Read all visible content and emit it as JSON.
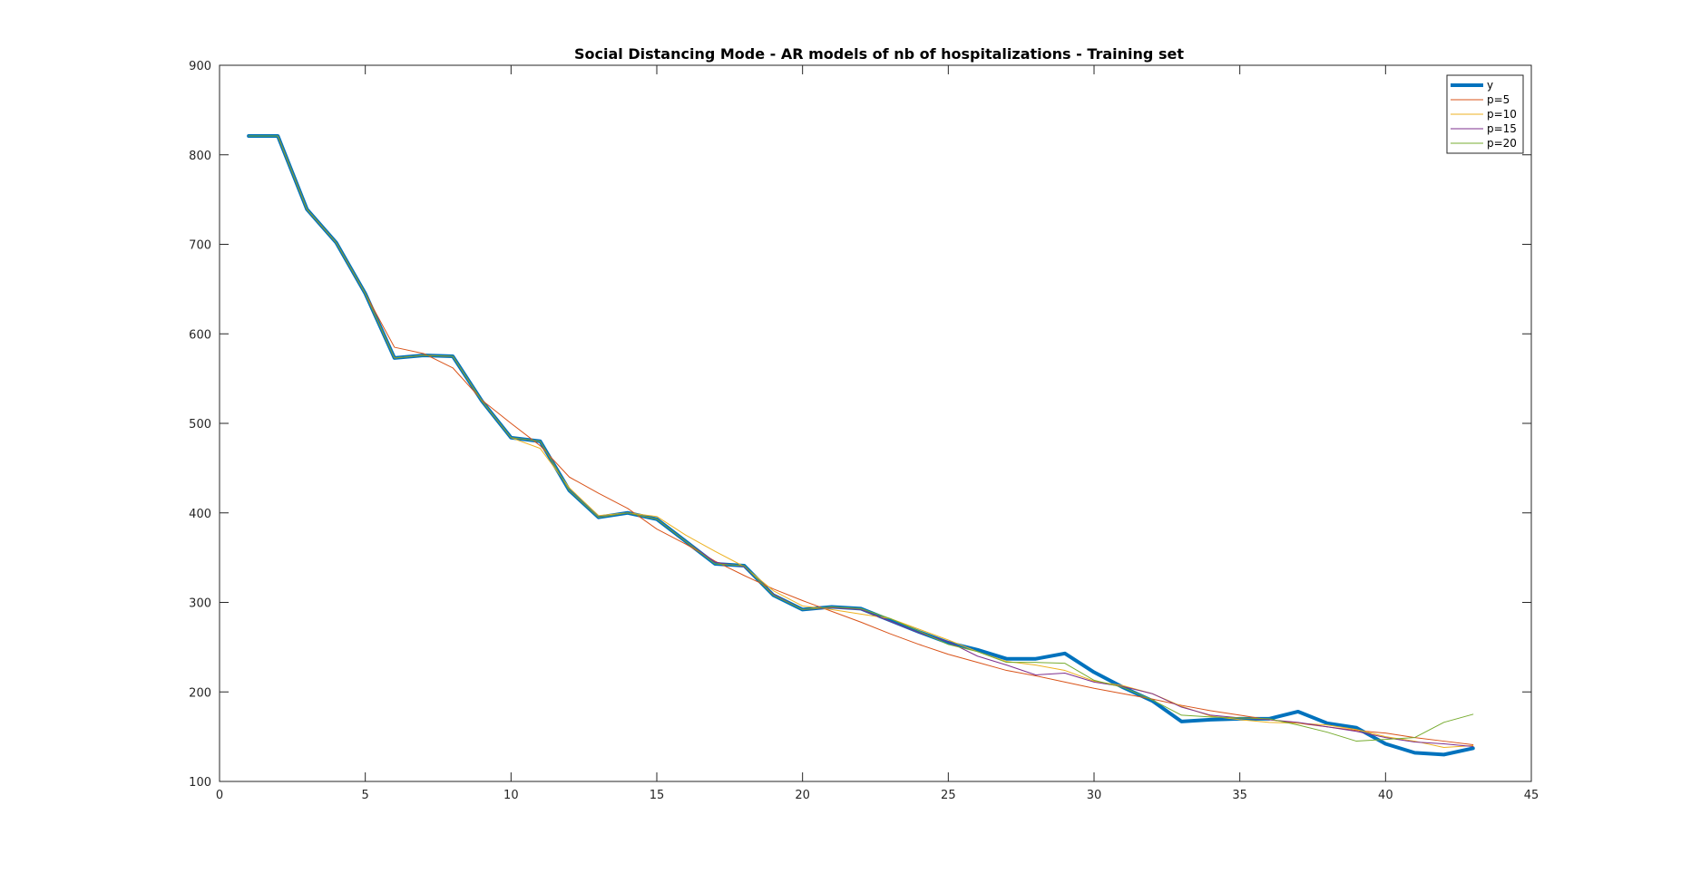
{
  "chart_data": {
    "type": "line",
    "title": "Social Distancing Mode - AR models of nb of hospitalizations - Training set",
    "xlabel": "",
    "ylabel": "",
    "xlim": [
      0,
      45
    ],
    "ylim": [
      100,
      900
    ],
    "xticks": [
      0,
      5,
      10,
      15,
      20,
      25,
      30,
      35,
      40,
      45
    ],
    "yticks": [
      100,
      200,
      300,
      400,
      500,
      600,
      700,
      800,
      900
    ],
    "grid": false,
    "legend_position": "top-right",
    "x": [
      1,
      2,
      3,
      4,
      5,
      6,
      7,
      8,
      9,
      10,
      11,
      12,
      13,
      14,
      15,
      16,
      17,
      18,
      19,
      20,
      21,
      22,
      23,
      24,
      25,
      26,
      27,
      28,
      29,
      30,
      31,
      32,
      33,
      34,
      35,
      36,
      37,
      38,
      39,
      40,
      41,
      42,
      43
    ],
    "series": [
      {
        "name": "y",
        "color": "#0072bd",
        "width": 4,
        "values": [
          821,
          821,
          739,
          702,
          645,
          573,
          576,
          575,
          525,
          484,
          480,
          425,
          395,
          400,
          393,
          368,
          343,
          341,
          308,
          292,
          295,
          293,
          280,
          267,
          255,
          247,
          237,
          237,
          243,
          222,
          205,
          190,
          167,
          169,
          170,
          170,
          178,
          165,
          160,
          142,
          132,
          130,
          137
        ]
      },
      {
        "name": "p=5",
        "color": "#d95319",
        "width": 1,
        "values": [
          821,
          821,
          739,
          702,
          645,
          585,
          578,
          562,
          526,
          500,
          475,
          440,
          422,
          405,
          382,
          365,
          346,
          330,
          315,
          302,
          290,
          278,
          265,
          253,
          242,
          233,
          224,
          218,
          211,
          204,
          198,
          192,
          185,
          179,
          174,
          169,
          165,
          161,
          157,
          154,
          149,
          145,
          141
        ]
      },
      {
        "name": "p=10",
        "color": "#edb120",
        "width": 1,
        "values": [
          821,
          821,
          739,
          702,
          645,
          573,
          576,
          575,
          525,
          484,
          472,
          428,
          397,
          400,
          396,
          375,
          357,
          340,
          313,
          296,
          292,
          287,
          282,
          270,
          258,
          245,
          234,
          230,
          224,
          212,
          207,
          198,
          184,
          173,
          169,
          166,
          165,
          163,
          158,
          150,
          145,
          138,
          140
        ]
      },
      {
        "name": "p=15",
        "color": "#7e2f8e",
        "width": 1,
        "values": [
          821,
          821,
          739,
          702,
          645,
          573,
          576,
          575,
          525,
          484,
          480,
          425,
          395,
          400,
          393,
          368,
          345,
          340,
          309,
          292,
          294,
          292,
          279,
          266,
          256,
          240,
          230,
          219,
          221,
          211,
          206,
          198,
          183,
          174,
          171,
          169,
          166,
          161,
          156,
          149,
          144,
          142,
          139
        ]
      },
      {
        "name": "p=20",
        "color": "#77ac30",
        "width": 1,
        "values": [
          821,
          821,
          739,
          702,
          645,
          573,
          576,
          575,
          525,
          484,
          480,
          425,
          395,
          400,
          393,
          368,
          343,
          341,
          308,
          292,
          295,
          293,
          282,
          268,
          253,
          245,
          233,
          233,
          232,
          213,
          205,
          191,
          174,
          172,
          171,
          170,
          163,
          155,
          145,
          147,
          149,
          166,
          175
        ]
      }
    ]
  }
}
